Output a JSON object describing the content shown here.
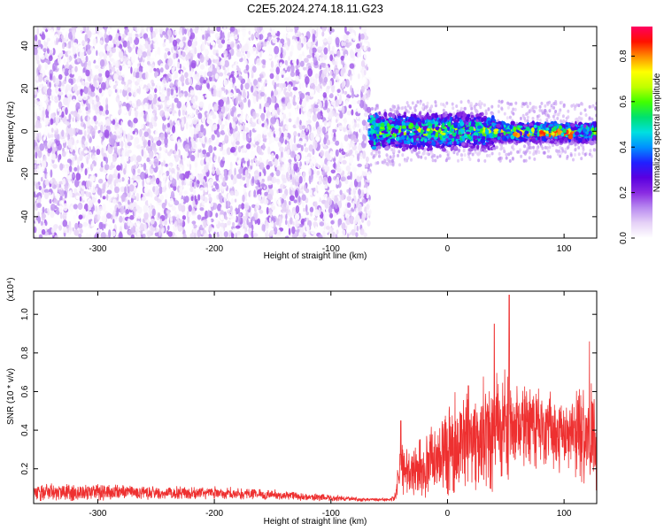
{
  "title": "C2E5.2024.274.18.11.G23",
  "chart_data": [
    {
      "type": "heatmap",
      "title": "C2E5.2024.274.18.11.G23",
      "xlabel": "Height of straight line (km)",
      "ylabel": "Frequency (Hz)",
      "xlim": [
        -355,
        128
      ],
      "ylim": [
        -50,
        49
      ],
      "xticks": [
        -300,
        -200,
        -100,
        0,
        100
      ],
      "yticks": [
        -40,
        -20,
        0,
        20,
        40
      ],
      "colorbar": {
        "label": "Normalized spectral amplitude",
        "range": [
          0,
          0.93
        ],
        "ticks": [
          0.0,
          0.2,
          0.4,
          0.6,
          0.8
        ],
        "colormap": [
          "#ffffff",
          "#e6d2f7",
          "#b98af0",
          "#8a2be2",
          "#5a00e0",
          "#2020ff",
          "#0090ff",
          "#00e0e0",
          "#00e070",
          "#40ff00",
          "#c0ff00",
          "#ffff00",
          "#ff9000",
          "#ff1000",
          "#ff0060"
        ]
      },
      "regions": [
        {
          "x_range": [
            -355,
            -67
          ],
          "y_range": [
            -50,
            49
          ],
          "description_level": "noise",
          "amplitude_range": [
            0.0,
            0.18
          ]
        },
        {
          "x_range": [
            -67,
            128
          ],
          "y_range": [
            -12,
            12
          ],
          "description_level": "signal",
          "amplitude_range": [
            0.1,
            0.85
          ]
        }
      ],
      "legend": "colorbar-right",
      "grid": false
    },
    {
      "type": "line",
      "xlabel": "Height of straight line (km)",
      "ylabel": "SNR (10 * v/v)",
      "y_multiplier": "(x10⁴)",
      "xlim": [
        -355,
        128
      ],
      "ylim": [
        0.02,
        1.12
      ],
      "xticks": [
        -300,
        -200,
        -100,
        0,
        100
      ],
      "yticks": [
        0.2,
        0.4,
        0.6,
        0.8,
        1.0
      ],
      "color": "#ee3030",
      "envelope_x": [
        -355,
        -330,
        -300,
        -250,
        -200,
        -150,
        -100,
        -70,
        -50,
        -45,
        -40,
        -35,
        -25,
        -10,
        0,
        20,
        40,
        50,
        60,
        80,
        100,
        115,
        128
      ],
      "envelope_base": [
        0.08,
        0.08,
        0.08,
        0.075,
        0.075,
        0.065,
        0.05,
        0.04,
        0.04,
        0.06,
        0.22,
        0.18,
        0.2,
        0.25,
        0.3,
        0.36,
        0.4,
        0.41,
        0.42,
        0.4,
        0.38,
        0.36,
        0.35
      ],
      "envelope_amp": [
        0.05,
        0.06,
        0.05,
        0.04,
        0.04,
        0.03,
        0.02,
        0.01,
        0.01,
        0.03,
        0.18,
        0.14,
        0.18,
        0.2,
        0.3,
        0.3,
        0.35,
        0.35,
        0.28,
        0.22,
        0.22,
        0.3,
        0.3
      ],
      "peaks": [
        [
          53,
          1.1
        ],
        [
          40,
          0.95
        ],
        [
          -40,
          0.45
        ],
        [
          122,
          0.86
        ],
        [
          18,
          0.63
        ]
      ],
      "grid": false
    }
  ]
}
